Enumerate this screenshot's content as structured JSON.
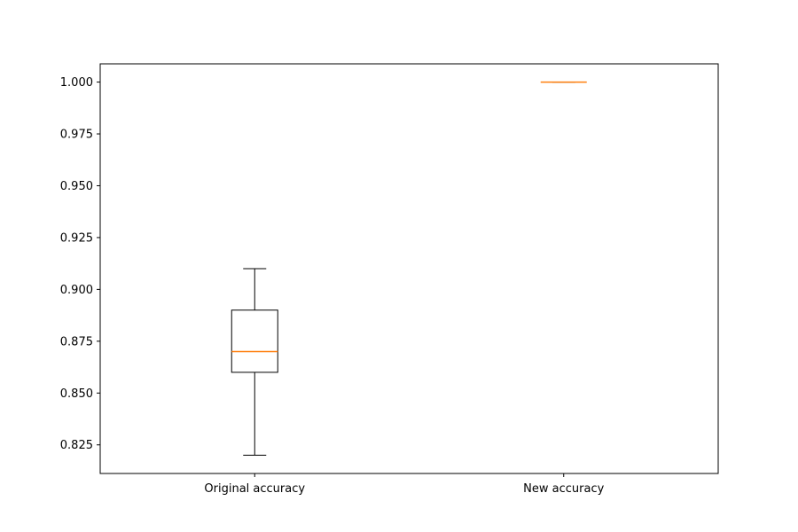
{
  "chart_data": {
    "type": "box",
    "title": "",
    "xlabel": "",
    "ylabel": "",
    "categories": [
      "Original accuracy",
      "New accuracy"
    ],
    "boxes": [
      {
        "label": "Original accuracy",
        "whisker_low": 0.82,
        "q1": 0.86,
        "median": 0.87,
        "q3": 0.89,
        "whisker_high": 0.91
      },
      {
        "label": "New accuracy",
        "whisker_low": 1.0,
        "q1": 1.0,
        "median": 1.0,
        "q3": 1.0,
        "whisker_high": 1.0
      }
    ],
    "ylim": [
      0.8112,
      1.0088
    ],
    "yticks": [
      0.825,
      0.85,
      0.875,
      0.9,
      0.925,
      0.95,
      0.975,
      1.0
    ],
    "ytick_labels": [
      "0.825",
      "0.850",
      "0.875",
      "0.900",
      "0.925",
      "0.950",
      "0.975",
      "1.000"
    ],
    "grid": false,
    "colors": {
      "box": "#000000",
      "median": "#ff7f0e"
    }
  }
}
